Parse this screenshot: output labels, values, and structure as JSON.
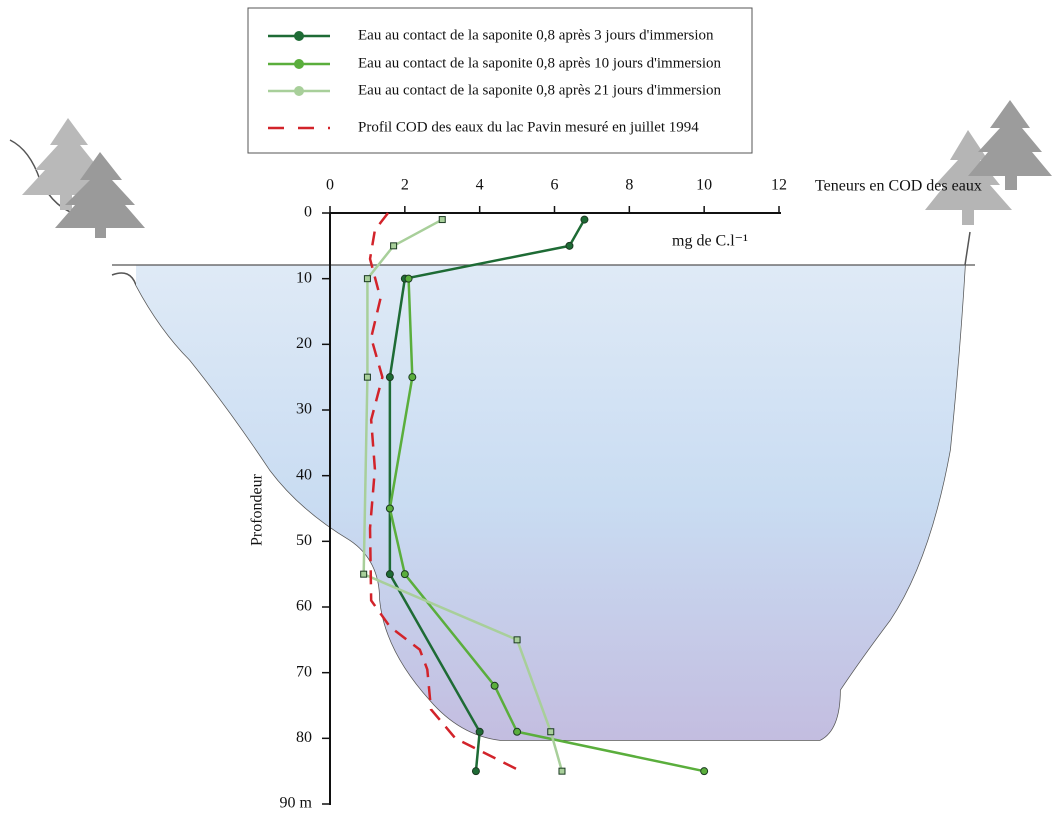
{
  "chart_data": {
    "type": "profile",
    "xlabel": "Teneurs en COD des eaux",
    "unit_label": "mg de C.l⁻¹",
    "ylabel": "Profondeur",
    "xlim": [
      0,
      12
    ],
    "xticks": [
      0,
      2,
      4,
      6,
      8,
      10,
      12
    ],
    "ylim": [
      0,
      90
    ],
    "yticks": [
      0,
      10,
      20,
      30,
      40,
      50,
      60,
      70,
      {
        "value": 90,
        "label": "90 m"
      },
      80
    ],
    "legend": "top",
    "series": [
      {
        "name": "Eau au contact de la saponite 0,8 après 3 jours d'immersion",
        "color": "#1e6b35",
        "style": "solid",
        "marker": "circle",
        "depth": [
          1,
          5,
          10,
          25,
          55,
          79,
          85
        ],
        "values": [
          6.8,
          6.4,
          2.0,
          1.6,
          1.6,
          4.0,
          3.9
        ]
      },
      {
        "name": "Eau au contact de la saponite 0,8 après 10 jours d'immersion",
        "color": "#5aae3c",
        "style": "solid",
        "marker": "circle",
        "depth": [
          10,
          25,
          45,
          55,
          72,
          79,
          85
        ],
        "values": [
          2.1,
          2.2,
          1.6,
          2.0,
          4.4,
          5.0,
          10.0
        ]
      },
      {
        "name": "Eau au contact de la saponite 0,8 après 21 jours d'immersion",
        "color": "#a8cf9a",
        "style": "solid",
        "marker": "square",
        "depth": [
          1,
          5,
          10,
          25,
          55,
          65,
          79,
          85
        ],
        "values": [
          3.0,
          1.7,
          1.0,
          1.0,
          0.9,
          5.0,
          5.9,
          6.2
        ]
      },
      {
        "name": "Profil COD des eaux du lac Pavin mesuré en juillet 1994",
        "color": "#d2232a",
        "style": "dashed",
        "marker": "none",
        "depth": [
          0,
          2.6,
          7,
          13,
          19,
          25,
          31.5,
          39,
          48,
          59,
          63,
          66.5,
          69.5,
          75.6,
          80,
          85
        ],
        "values": [
          1.55,
          1.2,
          1.07,
          1.35,
          1.1,
          1.4,
          1.1,
          1.2,
          1.07,
          1.1,
          1.6,
          2.4,
          2.6,
          2.7,
          3.35,
          5.1
        ]
      }
    ]
  }
}
